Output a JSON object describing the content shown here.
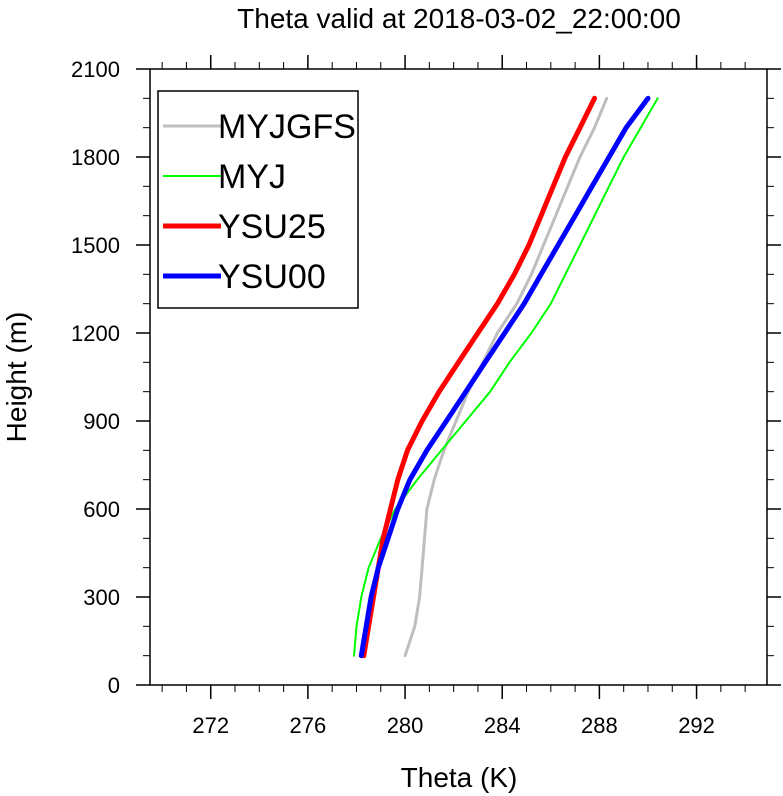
{
  "chart_data": {
    "type": "line",
    "title": "Theta valid at 2018-03-02_22:00:00",
    "xlabel": "Theta (K)",
    "ylabel": "Height (m)",
    "xlim": [
      269.5,
      294.9
    ],
    "ylim": [
      0,
      2100
    ],
    "x_ticks": [
      272,
      276,
      280,
      284,
      288,
      292
    ],
    "y_ticks": [
      0,
      300,
      600,
      900,
      1200,
      1500,
      1800,
      2100
    ],
    "x_minor_step": 1,
    "y_minor_step": 100,
    "grid": false,
    "legend": "top-left",
    "series": [
      {
        "name": "MYJGFS",
        "color": "#bebebe",
        "line_width": 3,
        "points": [
          [
            280.0,
            100
          ],
          [
            280.4,
            200
          ],
          [
            280.6,
            300
          ],
          [
            280.7,
            400
          ],
          [
            280.8,
            500
          ],
          [
            280.9,
            600
          ],
          [
            281.2,
            700
          ],
          [
            281.6,
            800
          ],
          [
            282.1,
            900
          ],
          [
            282.6,
            1000
          ],
          [
            283.2,
            1100
          ],
          [
            283.8,
            1200
          ],
          [
            284.6,
            1300
          ],
          [
            285.2,
            1400
          ],
          [
            285.7,
            1500
          ],
          [
            286.2,
            1600
          ],
          [
            286.7,
            1700
          ],
          [
            287.2,
            1800
          ],
          [
            287.8,
            1900
          ],
          [
            288.3,
            2000
          ]
        ]
      },
      {
        "name": "MYJ",
        "color": "#00ff00",
        "line_width": 2,
        "points": [
          [
            277.9,
            100
          ],
          [
            278.0,
            200
          ],
          [
            278.2,
            300
          ],
          [
            278.5,
            400
          ],
          [
            279.0,
            500
          ],
          [
            279.6,
            600
          ],
          [
            280.5,
            700
          ],
          [
            281.5,
            800
          ],
          [
            282.5,
            900
          ],
          [
            283.5,
            1000
          ],
          [
            284.3,
            1100
          ],
          [
            285.2,
            1200
          ],
          [
            286.0,
            1300
          ],
          [
            286.6,
            1400
          ],
          [
            287.2,
            1500
          ],
          [
            287.8,
            1600
          ],
          [
            288.4,
            1700
          ],
          [
            289.0,
            1800
          ],
          [
            289.7,
            1900
          ],
          [
            290.4,
            2000
          ]
        ]
      },
      {
        "name": "YSU25",
        "color": "#ff0000",
        "line_width": 5,
        "points": [
          [
            278.3,
            100
          ],
          [
            278.5,
            200
          ],
          [
            278.7,
            300
          ],
          [
            278.9,
            400
          ],
          [
            279.1,
            500
          ],
          [
            279.4,
            600
          ],
          [
            279.7,
            700
          ],
          [
            280.1,
            800
          ],
          [
            280.7,
            900
          ],
          [
            281.4,
            1000
          ],
          [
            282.2,
            1100
          ],
          [
            283.0,
            1200
          ],
          [
            283.8,
            1300
          ],
          [
            284.5,
            1400
          ],
          [
            285.1,
            1500
          ],
          [
            285.6,
            1600
          ],
          [
            286.1,
            1700
          ],
          [
            286.6,
            1800
          ],
          [
            287.2,
            1900
          ],
          [
            287.8,
            2000
          ]
        ]
      },
      {
        "name": "YSU00",
        "color": "#0000ff",
        "line_width": 5,
        "points": [
          [
            278.2,
            100
          ],
          [
            278.4,
            200
          ],
          [
            278.6,
            300
          ],
          [
            278.9,
            400
          ],
          [
            279.3,
            500
          ],
          [
            279.7,
            600
          ],
          [
            280.2,
            700
          ],
          [
            280.9,
            800
          ],
          [
            281.7,
            900
          ],
          [
            282.5,
            1000
          ],
          [
            283.3,
            1100
          ],
          [
            284.1,
            1200
          ],
          [
            284.9,
            1300
          ],
          [
            285.6,
            1400
          ],
          [
            286.3,
            1500
          ],
          [
            287.0,
            1600
          ],
          [
            287.7,
            1700
          ],
          [
            288.4,
            1800
          ],
          [
            289.1,
            1900
          ],
          [
            290.0,
            2000
          ]
        ]
      }
    ]
  }
}
